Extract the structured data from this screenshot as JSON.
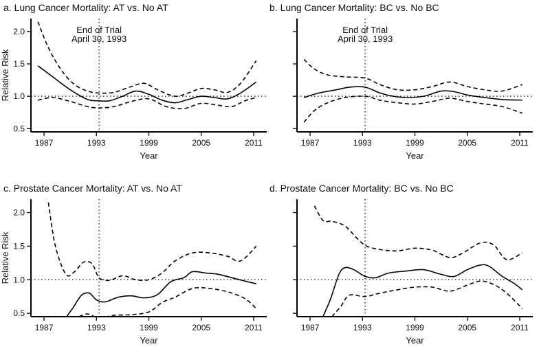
{
  "annotation": {
    "line1": "End of Trial",
    "line2": "April 30, 1993",
    "x": 1993.3
  },
  "xticks": [
    1987,
    1993,
    1999,
    2005,
    2011
  ],
  "xlabel": "Year",
  "ylabel": "Relative Risk",
  "chart_data": [
    {
      "type": "line",
      "title": "a.  Lung Cancer Mortality: AT vs. No AT",
      "xlabel": "Year",
      "ylabel": "Relative Risk",
      "xlim": [
        1985.5,
        2012.5
      ],
      "ylim": [
        0.45,
        2.2
      ],
      "yticks": [
        0.5,
        1.0,
        1.5,
        2.0
      ],
      "yticklabels": [
        "0.5",
        "1.0",
        "1.5",
        "2.0"
      ],
      "show_annotation": true,
      "reference_line": 1.0,
      "series": [
        {
          "name": "estimate",
          "style": "solid",
          "x": [
            1986.3,
            1988,
            1990,
            1992,
            1993.3,
            1994.5,
            1996,
            1997.5,
            1999,
            2000.5,
            2002,
            2003.5,
            2005,
            2006.5,
            2008,
            2009.5,
            2011.3
          ],
          "y": [
            1.47,
            1.3,
            1.1,
            0.95,
            0.93,
            0.93,
            1.0,
            1.08,
            1.03,
            0.94,
            0.9,
            0.95,
            1.0,
            0.98,
            0.96,
            1.05,
            1.22
          ]
        },
        {
          "name": "upper",
          "style": "dashed",
          "x": [
            1986.3,
            1987.5,
            1989,
            1990.5,
            1992,
            1993.3,
            1995,
            1997,
            1998.5,
            2000,
            2002,
            2003.5,
            2005,
            2006.5,
            2008,
            2009.5,
            2011.3
          ],
          "y": [
            2.15,
            1.75,
            1.4,
            1.18,
            1.08,
            1.05,
            1.06,
            1.15,
            1.2,
            1.1,
            1.0,
            1.05,
            1.12,
            1.1,
            1.06,
            1.2,
            1.55
          ]
        },
        {
          "name": "lower",
          "style": "dashed",
          "x": [
            1986.3,
            1988,
            1990,
            1992,
            1993.3,
            1995,
            1997,
            1999,
            2001,
            2003,
            2005,
            2007,
            2008.5,
            2010,
            2011.3
          ],
          "y": [
            0.94,
            0.98,
            0.92,
            0.84,
            0.82,
            0.84,
            0.92,
            0.96,
            0.84,
            0.81,
            0.89,
            0.86,
            0.84,
            0.93,
            0.98
          ]
        }
      ]
    },
    {
      "type": "line",
      "title": "b.  Lung Cancer Mortality: BC vs. No BC",
      "xlabel": "Year",
      "ylabel": "",
      "xlim": [
        1985.5,
        2012.5
      ],
      "ylim": [
        0.45,
        2.2
      ],
      "yticks": [
        0.5,
        1.0,
        1.5,
        2.0
      ],
      "yticklabels": [
        "",
        "",
        "",
        ""
      ],
      "show_annotation": true,
      "reference_line": 1.0,
      "series": [
        {
          "name": "estimate",
          "style": "solid",
          "x": [
            1986.3,
            1988,
            1990,
            1991.5,
            1993.3,
            1995,
            1996.5,
            1998,
            2000,
            2002,
            2003.5,
            2005,
            2007,
            2009,
            2011.3
          ],
          "y": [
            0.98,
            1.05,
            1.1,
            1.14,
            1.14,
            1.05,
            1.0,
            0.98,
            1.0,
            1.08,
            1.07,
            1.02,
            0.98,
            0.95,
            0.94
          ]
        },
        {
          "name": "upper",
          "style": "dashed",
          "x": [
            1986.3,
            1987.5,
            1989,
            1991,
            1993.3,
            1995,
            1997,
            1999,
            2001,
            2003,
            2005,
            2007,
            2009,
            2011.3
          ],
          "y": [
            1.57,
            1.42,
            1.33,
            1.3,
            1.28,
            1.18,
            1.1,
            1.1,
            1.15,
            1.22,
            1.15,
            1.1,
            1.08,
            1.18
          ]
        },
        {
          "name": "lower",
          "style": "dashed",
          "x": [
            1986.3,
            1987.5,
            1989,
            1991,
            1993.3,
            1995,
            1997,
            1999,
            2001,
            2003,
            2005,
            2007,
            2009,
            2011.3
          ],
          "y": [
            0.6,
            0.78,
            0.9,
            0.98,
            1.0,
            0.94,
            0.9,
            0.88,
            0.92,
            0.97,
            0.92,
            0.88,
            0.84,
            0.74
          ]
        }
      ]
    },
    {
      "type": "line",
      "title": "c.  Prostate Cancer Mortality: AT vs. No AT",
      "xlabel": "Year",
      "ylabel": "Relative Risk",
      "xlim": [
        1985.5,
        2012.5
      ],
      "ylim": [
        0.45,
        2.2
      ],
      "yticks": [
        0.5,
        1.0,
        1.5,
        2.0
      ],
      "yticklabels": [
        "0.5",
        "1.0",
        "1.5",
        "2.0"
      ],
      "show_annotation": false,
      "reference_line": 1.0,
      "series": [
        {
          "name": "estimate",
          "style": "solid",
          "x": [
            1989.3,
            1990.3,
            1991.3,
            1992.2,
            1993,
            1994,
            1995.5,
            1997,
            1998.5,
            2000,
            2001.5,
            2003,
            2004,
            2005.5,
            2007,
            2008.5,
            2010,
            2011.3
          ],
          "y": [
            0.4,
            0.58,
            0.77,
            0.8,
            0.7,
            0.67,
            0.74,
            0.76,
            0.73,
            0.78,
            0.97,
            1.03,
            1.12,
            1.1,
            1.08,
            1.03,
            0.98,
            0.94
          ]
        },
        {
          "name": "upper",
          "style": "dashed",
          "x": [
            1987.5,
            1988.3,
            1989.5,
            1990.5,
            1991.5,
            1992.5,
            1993.3,
            1994.5,
            1996,
            1997.5,
            1999,
            2000.5,
            2002,
            2004,
            2006,
            2008,
            2009.5,
            2011.3
          ],
          "y": [
            2.15,
            1.5,
            1.08,
            1.12,
            1.26,
            1.24,
            1.03,
            0.99,
            1.06,
            1.0,
            1.0,
            1.1,
            1.28,
            1.4,
            1.4,
            1.35,
            1.28,
            1.5
          ]
        },
        {
          "name": "lower",
          "style": "dashed",
          "x": [
            1991,
            1992,
            1993.3,
            1995,
            1997,
            1999,
            2000.5,
            2002,
            2004,
            2006,
            2008,
            2010,
            2011.3
          ],
          "y": [
            0.45,
            0.49,
            0.43,
            0.47,
            0.48,
            0.52,
            0.66,
            0.74,
            0.87,
            0.87,
            0.82,
            0.72,
            0.57
          ]
        }
      ]
    },
    {
      "type": "line",
      "title": "d.  Prostate Cancer Mortality: BC vs. No BC",
      "xlabel": "Year",
      "ylabel": "",
      "xlim": [
        1985.5,
        2012.5
      ],
      "ylim": [
        0.45,
        2.2
      ],
      "yticks": [
        0.5,
        1.0,
        1.5,
        2.0
      ],
      "yticklabels": [
        "",
        "",
        "",
        ""
      ],
      "show_annotation": false,
      "reference_line": 1.0,
      "series": [
        {
          "name": "estimate",
          "style": "solid",
          "x": [
            1988.3,
            1989.3,
            1990.3,
            1991,
            1992,
            1993.3,
            1994.5,
            1996,
            1998,
            2000,
            2002,
            2003.5,
            2005,
            2006.5,
            2007.5,
            2009,
            2010.3,
            2011.3
          ],
          "y": [
            0.4,
            0.7,
            1.08,
            1.18,
            1.15,
            1.05,
            1.03,
            1.1,
            1.13,
            1.15,
            1.08,
            1.05,
            1.15,
            1.22,
            1.2,
            1.05,
            0.95,
            0.85
          ]
        },
        {
          "name": "upper",
          "style": "dashed",
          "x": [
            1987.5,
            1988.5,
            1989.5,
            1991,
            1992.5,
            1993.5,
            1995,
            1997,
            1999,
            2001,
            2003,
            2004.5,
            2006.5,
            2008,
            2009.5,
            2011.3
          ],
          "y": [
            2.1,
            1.88,
            1.87,
            1.8,
            1.6,
            1.5,
            1.45,
            1.43,
            1.47,
            1.44,
            1.33,
            1.4,
            1.55,
            1.52,
            1.3,
            1.4
          ]
        },
        {
          "name": "lower",
          "style": "dashed",
          "x": [
            1989.5,
            1990.5,
            1991.5,
            1993.3,
            1995,
            1997,
            1999,
            2001,
            2003,
            2005,
            2006.5,
            2008,
            2009.5,
            2011.3
          ],
          "y": [
            0.45,
            0.6,
            0.77,
            0.75,
            0.8,
            0.85,
            0.89,
            0.89,
            0.83,
            0.92,
            0.98,
            0.93,
            0.8,
            0.57
          ]
        }
      ]
    }
  ]
}
